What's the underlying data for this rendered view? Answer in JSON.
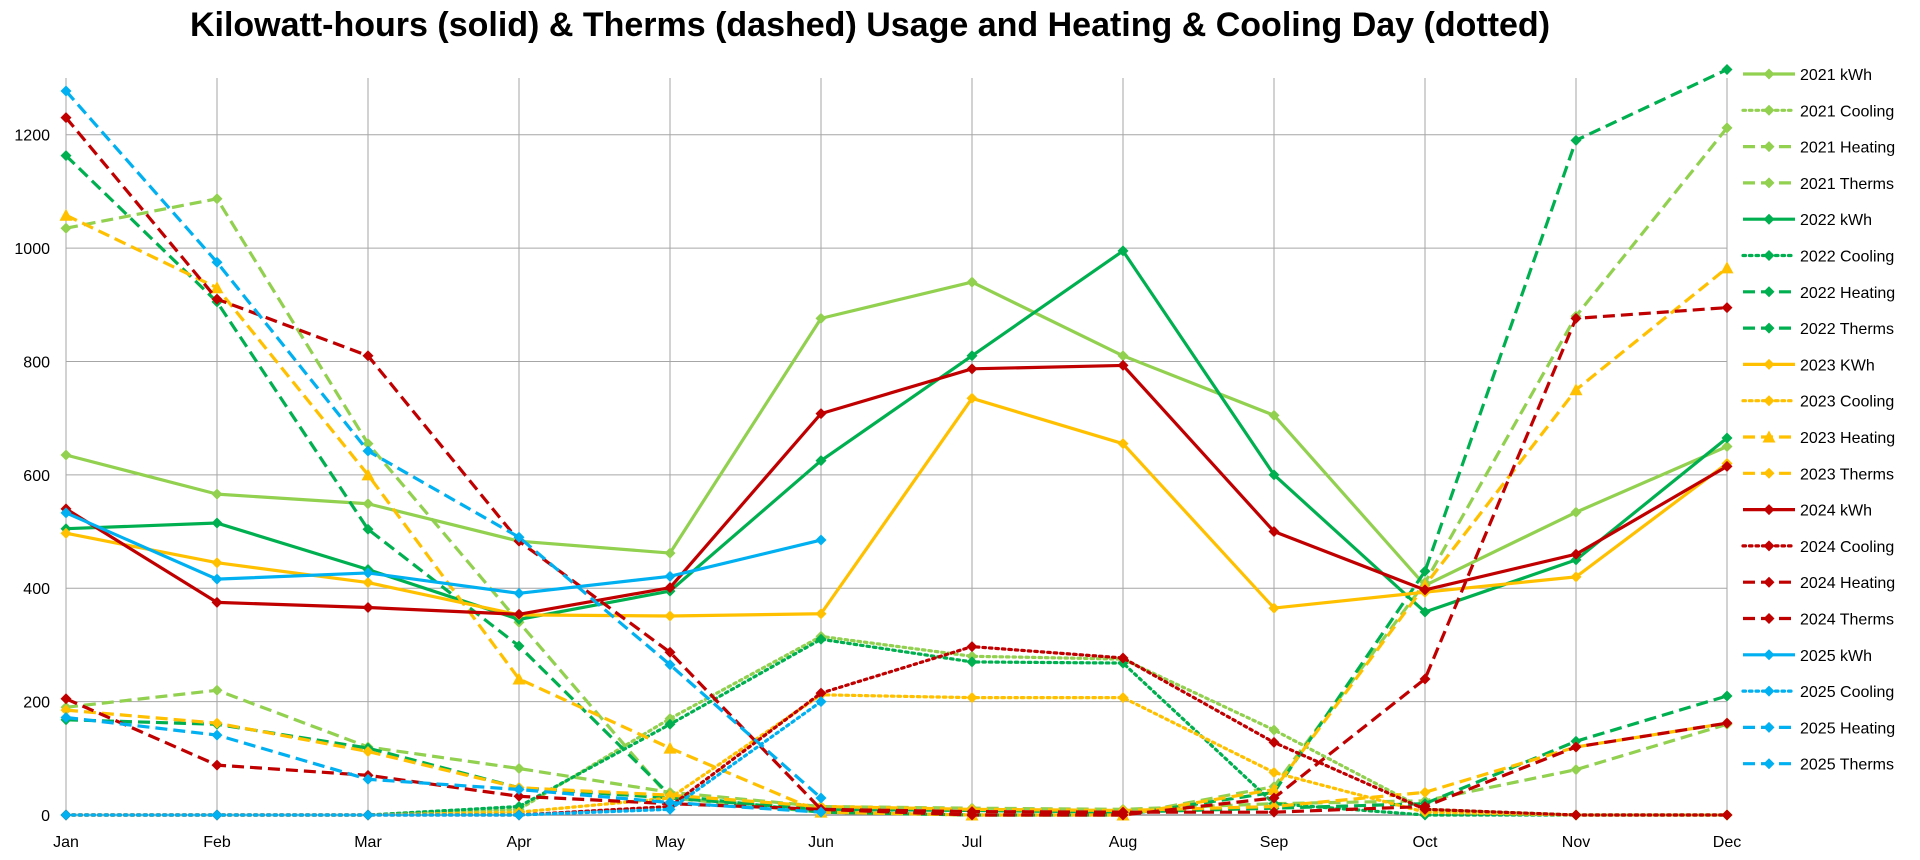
{
  "chart_data": {
    "type": "line",
    "title": "Kilowatt-hours (solid) & Therms (dashed) Usage and Heating & Cooling Day (dotted)",
    "categories": [
      "Jan",
      "Feb",
      "Mar",
      "Apr",
      "May",
      "Jun",
      "Jul",
      "Aug",
      "Sep",
      "Oct",
      "Nov",
      "Dec"
    ],
    "ylim": [
      0,
      1300
    ],
    "yticks": [
      0,
      200,
      400,
      600,
      800,
      1000,
      1200
    ],
    "grid": true,
    "legend_position": "right",
    "series": [
      {
        "name": "2021 kWh",
        "color": "#92d050",
        "style": "solid",
        "marker": "diamond",
        "values": [
          635,
          566,
          549,
          483,
          462,
          876,
          940,
          810,
          705,
          405,
          534,
          650
        ]
      },
      {
        "name": "2021 Cooling",
        "color": "#92d050",
        "style": "dotted",
        "marker": "diamond",
        "values": [
          0,
          0,
          0,
          10,
          170,
          315,
          280,
          275,
          150,
          10,
          0,
          0
        ]
      },
      {
        "name": "2021 Heating",
        "color": "#92d050",
        "style": "dashed",
        "marker": "diamond",
        "values": [
          1035,
          1087,
          655,
          340,
          30,
          5,
          0,
          0,
          50,
          410,
          880,
          1212
        ]
      },
      {
        "name": "2021 Therms",
        "color": "#92d050",
        "style": "dashed",
        "marker": "diamond",
        "values": [
          190,
          220,
          120,
          82,
          40,
          15,
          12,
          10,
          20,
          25,
          80,
          160
        ]
      },
      {
        "name": "2022 kWh",
        "color": "#00b050",
        "style": "solid",
        "marker": "diamond",
        "values": [
          505,
          515,
          433,
          345,
          395,
          625,
          810,
          995,
          600,
          358,
          450,
          665
        ]
      },
      {
        "name": "2022 Cooling",
        "color": "#00b050",
        "style": "dotted",
        "marker": "diamond",
        "values": [
          0,
          0,
          0,
          15,
          160,
          310,
          270,
          268,
          20,
          0,
          0,
          0
        ]
      },
      {
        "name": "2022 Heating",
        "color": "#00b050",
        "style": "dashed",
        "marker": "diamond",
        "values": [
          1163,
          905,
          504,
          298,
          35,
          5,
          0,
          0,
          40,
          430,
          1190,
          1315
        ]
      },
      {
        "name": "2022 Therms",
        "color": "#00b050",
        "style": "dashed",
        "marker": "diamond",
        "values": [
          168,
          160,
          118,
          48,
          30,
          10,
          8,
          5,
          12,
          20,
          130,
          210
        ]
      },
      {
        "name": "2023 KWh",
        "color": "#ffc000",
        "style": "solid",
        "marker": "diamond",
        "values": [
          497,
          445,
          410,
          353,
          351,
          355,
          735,
          655,
          365,
          393,
          420,
          620
        ]
      },
      {
        "name": "2023 Cooling",
        "color": "#ffc000",
        "style": "dotted",
        "marker": "diamond",
        "values": [
          0,
          0,
          0,
          5,
          30,
          212,
          207,
          207,
          75,
          5,
          0,
          0
        ]
      },
      {
        "name": "2023 Heating",
        "color": "#ffc000",
        "style": "dashed",
        "marker": "triangle",
        "values": [
          1058,
          930,
          600,
          240,
          118,
          5,
          0,
          0,
          45,
          405,
          750,
          965
        ]
      },
      {
        "name": "2023 Therms",
        "color": "#ffc000",
        "style": "dashed",
        "marker": "diamond",
        "values": [
          185,
          162,
          112,
          48,
          35,
          15,
          10,
          8,
          15,
          40,
          120,
          162
        ]
      },
      {
        "name": "2024 kWh",
        "color": "#c00000",
        "style": "solid",
        "marker": "diamond",
        "values": [
          540,
          375,
          366,
          354,
          401,
          708,
          787,
          793,
          500,
          397,
          460,
          615
        ]
      },
      {
        "name": "2024 Cooling",
        "color": "#c00000",
        "style": "dotted",
        "marker": "diamond",
        "values": [
          0,
          0,
          0,
          0,
          15,
          215,
          297,
          277,
          128,
          10,
          0,
          0
        ]
      },
      {
        "name": "2024 Heating",
        "color": "#c00000",
        "style": "dashed",
        "marker": "diamond",
        "values": [
          1230,
          910,
          810,
          483,
          287,
          10,
          0,
          0,
          30,
          240,
          876,
          895
        ]
      },
      {
        "name": "2024 Therms",
        "color": "#c00000",
        "style": "dashed",
        "marker": "diamond",
        "values": [
          205,
          88,
          70,
          33,
          20,
          10,
          6,
          5,
          5,
          15,
          120,
          162
        ]
      },
      {
        "name": "2025 kWh",
        "color": "#00b0f0",
        "style": "solid",
        "marker": "diamond",
        "values": [
          533,
          416,
          427,
          391,
          421,
          485,
          null,
          null,
          null,
          null,
          null,
          null
        ]
      },
      {
        "name": "2025 Cooling",
        "color": "#00b0f0",
        "style": "dotted",
        "marker": "diamond",
        "values": [
          0,
          0,
          0,
          0,
          10,
          200,
          null,
          null,
          null,
          null,
          null,
          null
        ]
      },
      {
        "name": "2025 Heating",
        "color": "#00b0f0",
        "style": "dashed",
        "marker": "diamond",
        "values": [
          1277,
          975,
          642,
          490,
          265,
          30,
          null,
          null,
          null,
          null,
          null,
          null
        ]
      },
      {
        "name": "2025 Therms",
        "color": "#00b0f0",
        "style": "dashed",
        "marker": "diamond",
        "values": [
          172,
          141,
          63,
          45,
          22,
          5,
          null,
          null,
          null,
          null,
          null,
          null
        ]
      }
    ]
  }
}
